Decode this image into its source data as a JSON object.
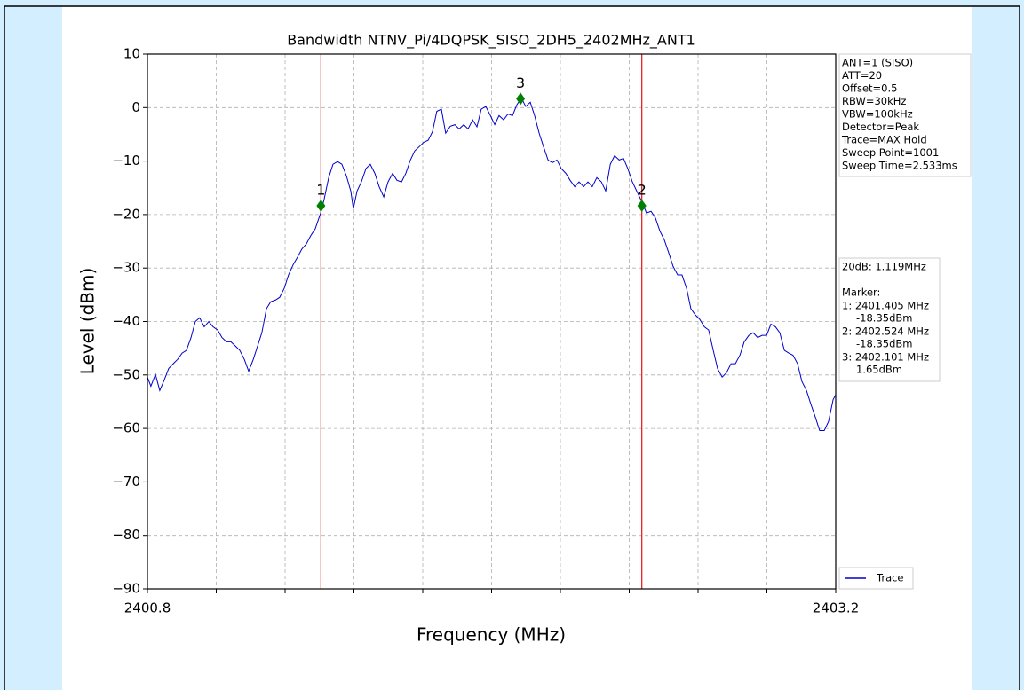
{
  "chart_data": {
    "type": "line",
    "title": "Bandwidth NTNV_Pi/4DQPSK_SISO_2DH5_2402MHz_ANT1",
    "xlabel": "Frequency (MHz)",
    "ylabel": "Level (dBm)",
    "xlim": [
      2400.8,
      2403.2
    ],
    "xticks": [
      2400.8,
      2403.2
    ],
    "xminor_ticks": [
      2401.04,
      2401.28,
      2401.52,
      2401.76,
      2402.0,
      2402.24,
      2402.48,
      2402.72,
      2402.96
    ],
    "ylim": [
      -90,
      10
    ],
    "yticks": [
      {
        "value": -90,
        "label": "−90"
      },
      {
        "value": -80,
        "label": "−80"
      },
      {
        "value": -70,
        "label": "−70"
      },
      {
        "value": -60,
        "label": "−60"
      },
      {
        "value": -50,
        "label": "−50"
      },
      {
        "value": -40,
        "label": "−40"
      },
      {
        "value": -30,
        "label": "−30"
      },
      {
        "value": -20,
        "label": "−20"
      },
      {
        "value": -10,
        "label": "−10"
      },
      0,
      10
    ],
    "grid": true,
    "legend": "lower right",
    "x": [
      2400.8,
      2400.812,
      2400.828,
      2400.843,
      2400.859,
      2400.874,
      2400.89,
      2400.905,
      2400.921,
      2400.936,
      2400.952,
      2400.967,
      2400.982,
      2400.998,
      2401.014,
      2401.029,
      2401.045,
      2401.06,
      2401.076,
      2401.091,
      2401.107,
      2401.122,
      2401.138,
      2401.153,
      2401.169,
      2401.184,
      2401.199,
      2401.215,
      2401.23,
      2401.246,
      2401.261,
      2401.277,
      2401.292,
      2401.308,
      2401.323,
      2401.339,
      2401.354,
      2401.37,
      2401.385,
      2401.404,
      2401.416,
      2401.432,
      2401.447,
      2401.463,
      2401.478,
      2401.494,
      2401.509,
      2401.518,
      2401.531,
      2401.546,
      2401.562,
      2401.577,
      2401.593,
      2401.608,
      2401.624,
      2401.639,
      2401.655,
      2401.67,
      2401.686,
      2401.701,
      2401.717,
      2401.732,
      2401.748,
      2401.763,
      2401.779,
      2401.794,
      2401.809,
      2401.825,
      2401.84,
      2401.856,
      2401.872,
      2401.887,
      2401.903,
      2401.918,
      2401.934,
      2401.949,
      2401.964,
      2401.98,
      2401.996,
      2402.011,
      2402.026,
      2402.042,
      2402.057,
      2402.073,
      2402.088,
      2402.104,
      2402.119,
      2402.135,
      2402.15,
      2402.166,
      2402.181,
      2402.197,
      2402.212,
      2402.228,
      2402.243,
      2402.259,
      2402.274,
      2402.29,
      2402.305,
      2402.321,
      2402.336,
      2402.351,
      2402.367,
      2402.383,
      2402.398,
      2402.414,
      2402.429,
      2402.445,
      2402.46,
      2402.475,
      2402.491,
      2402.506,
      2402.525,
      2402.54,
      2402.556,
      2402.571,
      2402.587,
      2402.602,
      2402.618,
      2402.633,
      2402.649,
      2402.664,
      2402.68,
      2402.695,
      2402.711,
      2402.726,
      2402.742,
      2402.757,
      2402.773,
      2402.788,
      2402.804,
      2402.819,
      2402.835,
      2402.85,
      2402.866,
      2402.881,
      2402.897,
      2402.912,
      2402.928,
      2402.943,
      2402.959,
      2402.974,
      2402.99,
      2403.005,
      2403.021,
      2403.036,
      2403.051,
      2403.067,
      2403.082,
      2403.098,
      2403.113,
      2403.129,
      2403.144,
      2403.16,
      2403.175,
      2403.191,
      2403.2
    ],
    "series": [
      {
        "name": "Trace",
        "color": "#0000cc",
        "values": [
          -50.4,
          -52.1,
          -49.9,
          -52.9,
          -50.9,
          -48.8,
          -47.9,
          -47.1,
          -45.9,
          -45.4,
          -43.0,
          -40.0,
          -39.3,
          -41.0,
          -40.0,
          -41.0,
          -41.6,
          -43.0,
          -43.8,
          -43.8,
          -44.6,
          -45.4,
          -47.1,
          -49.3,
          -47.1,
          -44.6,
          -42.1,
          -37.6,
          -36.3,
          -36.0,
          -35.5,
          -33.8,
          -31.3,
          -29.4,
          -28.0,
          -26.4,
          -25.5,
          -23.9,
          -22.7,
          -19.7,
          -17.2,
          -13.1,
          -10.6,
          -10.1,
          -10.6,
          -12.8,
          -15.6,
          -18.9,
          -15.6,
          -13.9,
          -11.4,
          -10.6,
          -12.3,
          -14.8,
          -16.7,
          -13.9,
          -12.3,
          -13.6,
          -13.9,
          -12.3,
          -9.8,
          -8.1,
          -7.3,
          -6.5,
          -6.1,
          -4.5,
          -0.7,
          -0.3,
          -4.8,
          -3.5,
          -3.2,
          -4.0,
          -3.2,
          -4.0,
          -2.3,
          -3.6,
          -0.3,
          0.2,
          -1.5,
          -3.2,
          -1.5,
          -2.3,
          -1.2,
          -1.5,
          0.5,
          1.8,
          0.2,
          1.0,
          -1.5,
          -4.8,
          -7.3,
          -9.8,
          -10.3,
          -9.8,
          -11.4,
          -12.3,
          -13.6,
          -14.8,
          -13.9,
          -14.8,
          -13.9,
          -14.8,
          -13.1,
          -13.9,
          -15.6,
          -10.6,
          -9.0,
          -9.8,
          -9.5,
          -11.4,
          -13.9,
          -15.6,
          -17.7,
          -19.7,
          -19.4,
          -20.6,
          -23.1,
          -24.7,
          -27.2,
          -29.7,
          -31.3,
          -31.3,
          -33.8,
          -37.6,
          -38.8,
          -39.6,
          -41.0,
          -41.6,
          -45.4,
          -48.8,
          -50.4,
          -49.6,
          -47.9,
          -47.9,
          -46.3,
          -43.8,
          -42.6,
          -42.1,
          -43.0,
          -42.6,
          -42.6,
          -40.5,
          -41.0,
          -42.1,
          -45.4,
          -45.9,
          -46.3,
          -47.9,
          -51.2,
          -52.9,
          -55.4,
          -57.9,
          -60.4,
          -60.4,
          -58.7,
          -54.6,
          -53.7
        ]
      }
    ],
    "markers": [
      {
        "label": "1",
        "x": 2401.405,
        "y": -18.35,
        "color": "#008000",
        "vline_color": "#e01010"
      },
      {
        "label": "2",
        "x": 2402.524,
        "y": -18.35,
        "color": "#008000",
        "vline_color": "#e01010"
      },
      {
        "label": "3",
        "x": 2402.101,
        "y": 1.65,
        "color": "#008000"
      }
    ],
    "info_box": [
      "ANT=1 (SISO)",
      "ATT=20",
      "Offset=0.5",
      "RBW=30kHz",
      "VBW=100kHz",
      "Detector=Peak",
      "Trace=MAX Hold",
      "Sweep Point=1001",
      "Sweep Time=2.533ms"
    ],
    "marker_box": {
      "bandwidth": "20dB: 1.119MHz",
      "heading": "Marker:",
      "entries": [
        [
          "1: 2401.405 MHz",
          "-18.35dBm"
        ],
        [
          "2: 2402.524 MHz",
          "-18.35dBm"
        ],
        [
          "3: 2402.101 MHz",
          "1.65dBm"
        ]
      ]
    }
  }
}
